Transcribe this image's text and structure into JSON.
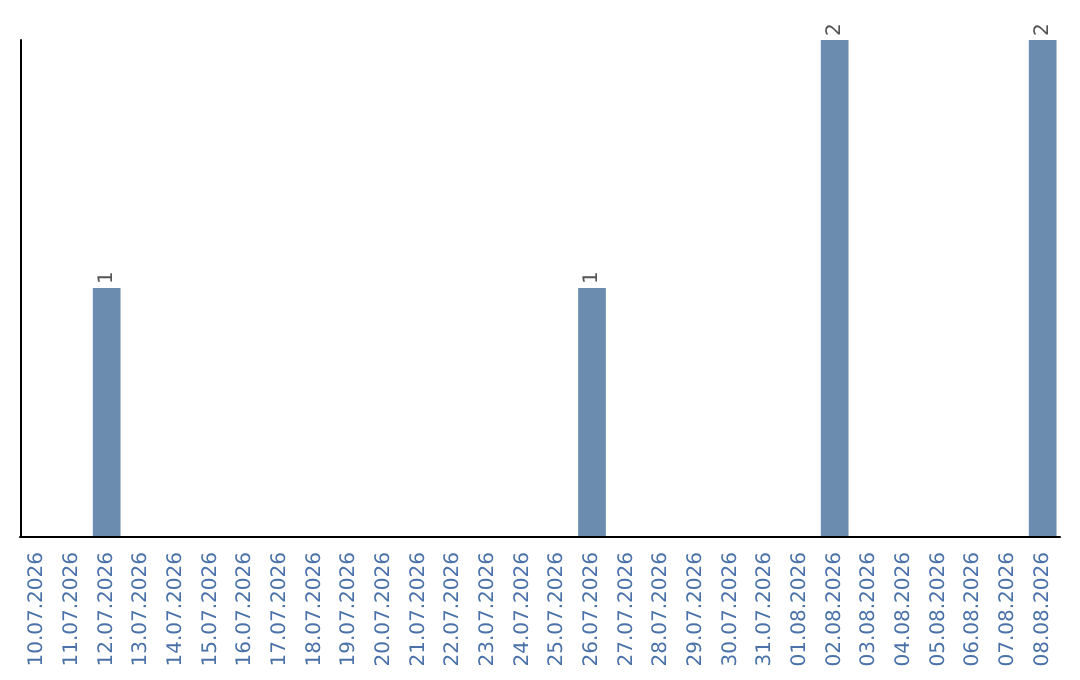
{
  "chart_data": {
    "type": "bar",
    "categories": [
      "10.07.2026",
      "11.07.2026",
      "12.07.2026",
      "13.07.2026",
      "14.07.2026",
      "15.07.2026",
      "16.07.2026",
      "17.07.2026",
      "18.07.2026",
      "19.07.2026",
      "20.07.2026",
      "21.07.2026",
      "22.07.2026",
      "23.07.2026",
      "24.07.2026",
      "25.07.2026",
      "26.07.2026",
      "27.07.2026",
      "28.07.2026",
      "29.07.2026",
      "30.07.2026",
      "31.07.2026",
      "01.08.2026",
      "02.08.2026",
      "03.08.2026",
      "04.08.2026",
      "05.08.2026",
      "06.08.2026",
      "07.08.2026",
      "08.08.2026"
    ],
    "values": [
      0,
      0,
      1,
      0,
      0,
      0,
      0,
      0,
      0,
      0,
      0,
      0,
      0,
      0,
      0,
      0,
      1,
      0,
      0,
      0,
      0,
      0,
      0,
      2,
      0,
      0,
      0,
      0,
      0,
      2
    ],
    "value_labels": [
      null,
      null,
      "1",
      null,
      null,
      null,
      null,
      null,
      null,
      null,
      null,
      null,
      null,
      null,
      null,
      null,
      "1",
      null,
      null,
      null,
      null,
      null,
      null,
      "2",
      null,
      null,
      null,
      null,
      null,
      "2"
    ],
    "color": "#6b8cae",
    "tick_labels": "x"
  }
}
